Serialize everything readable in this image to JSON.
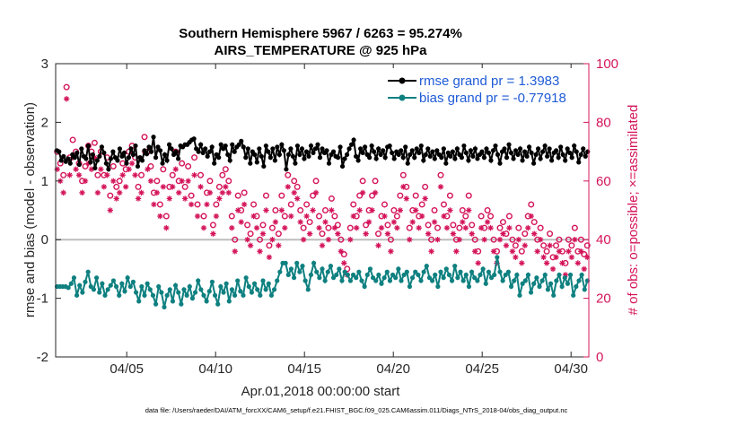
{
  "chart_data": {
    "type": "line",
    "title": "Southern Hemisphere 5967 / 6263 = 95.274%",
    "subtitle": "AIRS_TEMPERATURE @ 925 hPa",
    "xlabel": "Apr.01,2018 00:00:00 start",
    "ylabel_left": "rmse and bias (model - observation)",
    "ylabel_right": "# of obs: o=possible; ×=assimilated",
    "xlim": [
      1,
      31
    ],
    "ylim_left": [
      -2,
      3
    ],
    "ylim_right": [
      0,
      100
    ],
    "x_ticks": [
      5,
      10,
      15,
      20,
      25,
      30
    ],
    "x_tick_labels": [
      "04/05",
      "04/10",
      "04/15",
      "04/20",
      "04/25",
      "04/30"
    ],
    "y_ticks_left": [
      -2,
      -1,
      0,
      1,
      2,
      3
    ],
    "y_ticks_right": [
      0,
      20,
      40,
      60,
      80,
      100
    ],
    "legend_position": "top-right",
    "footer": "data file: /Users/raeder/DAI/ATM_forcXX/CAM6_setup/f.e21.FHIST_BGC.f09_025.CAM6assim.011/Diags_NTrS_2018-04/obs_diag_output.nc",
    "colors": {
      "rmse": "#000000",
      "bias": "#0f8080",
      "obs": "#d4145a",
      "zero": "#bdbdbd"
    },
    "series": [
      {
        "name": "rmse grand pr = 1.3983",
        "axis": "left",
        "values": [
          1.52,
          1.5,
          1.35,
          1.42,
          1.33,
          1.38,
          1.3,
          1.45,
          1.4,
          1.48,
          1.28,
          1.55,
          1.42,
          1.38,
          1.6,
          1.32,
          1.45,
          1.22,
          1.35,
          1.42,
          1.58,
          1.48,
          1.3,
          1.2,
          1.38,
          1.5,
          1.4,
          1.35,
          1.55,
          1.42,
          1.48,
          1.3,
          1.4,
          1.55,
          1.45,
          1.6,
          1.25,
          1.4,
          1.35,
          1.52,
          1.46,
          1.58,
          1.5,
          1.75,
          1.4,
          1.58,
          1.52,
          1.3,
          1.45,
          1.35,
          1.62,
          1.55,
          1.45,
          1.5,
          1.38,
          1.6,
          1.58,
          1.62,
          1.62,
          1.66,
          1.7,
          1.72,
          1.55,
          1.5,
          1.62,
          1.48,
          1.55,
          1.42,
          1.5,
          1.58,
          1.3,
          1.45,
          1.4,
          1.62,
          1.55,
          1.6,
          1.45,
          1.35,
          1.62,
          1.5,
          1.58,
          1.62,
          1.68,
          1.58,
          1.4,
          1.55,
          1.3,
          1.5,
          1.45,
          1.32,
          1.55,
          1.42,
          1.25,
          1.6,
          1.5,
          1.4,
          1.55,
          1.35,
          1.58,
          1.45,
          1.62,
          1.52,
          1.2,
          1.45,
          1.55,
          1.42,
          1.3,
          1.6,
          1.45,
          1.55,
          1.38,
          1.5,
          1.42,
          1.6,
          1.48,
          1.55,
          1.62,
          1.4,
          1.55,
          1.48,
          1.52,
          1.3,
          1.45,
          1.5,
          1.42,
          1.4,
          1.58,
          1.25,
          1.38,
          1.45,
          1.55,
          1.62,
          1.7,
          1.42,
          1.35,
          1.55,
          1.48,
          1.58,
          1.45,
          1.4,
          1.6,
          1.5,
          1.38,
          1.55,
          1.45,
          1.52,
          1.4,
          1.58,
          1.6,
          1.48,
          1.38,
          1.5,
          1.45,
          1.52,
          1.4,
          1.58,
          1.3,
          1.45,
          1.52,
          1.4,
          1.55,
          1.48,
          1.6,
          1.35,
          1.45,
          1.55,
          1.42,
          1.5,
          1.38,
          1.52,
          1.45,
          1.4,
          1.55,
          1.3,
          1.48,
          1.42,
          1.5,
          1.38,
          1.55,
          1.45,
          1.4,
          1.6,
          1.48,
          1.35,
          1.52,
          1.42,
          1.55,
          1.38,
          1.45,
          1.5,
          1.4,
          1.55,
          1.48,
          1.35,
          1.52,
          1.6,
          1.45,
          1.3,
          1.5,
          1.55,
          1.4,
          1.62,
          1.48,
          1.38,
          1.52,
          1.45,
          1.55,
          1.35,
          1.5,
          1.42,
          1.58,
          1.48,
          1.3,
          1.45,
          1.55,
          1.38,
          1.5,
          1.6,
          1.42,
          1.55,
          1.35,
          1.48,
          1.52,
          1.4,
          1.58,
          1.45,
          1.35,
          1.55,
          1.48,
          1.4,
          1.6,
          1.5,
          1.32,
          1.45,
          1.55,
          1.42,
          1.5
        ]
      },
      {
        "name": "bias grand pr = -0.77918",
        "axis": "left",
        "values": [
          -0.8,
          -0.8,
          -0.8,
          -0.8,
          -0.82,
          -0.75,
          -0.65,
          -0.95,
          -0.78,
          -0.9,
          -0.72,
          -0.55,
          -0.8,
          -0.85,
          -0.65,
          -0.9,
          -0.75,
          -0.95,
          -0.85,
          -0.78,
          -0.7,
          -0.8,
          -0.95,
          -0.75,
          -0.88,
          -0.65,
          -0.8,
          -0.72,
          -0.9,
          -1.05,
          -0.8,
          -0.95,
          -0.75,
          -0.85,
          -0.95,
          -1.1,
          -0.8,
          -0.9,
          -1.15,
          -0.95,
          -0.85,
          -1.05,
          -0.78,
          -0.9,
          -1.1,
          -0.85,
          -0.95,
          -0.8,
          -1.0,
          -0.9,
          -0.7,
          -0.85,
          -0.95,
          -1.05,
          -0.88,
          -0.72,
          -0.95,
          -1.1,
          -0.8,
          -0.9,
          -0.75,
          -1.05,
          -0.85,
          -0.95,
          -0.7,
          -0.88,
          -0.95,
          -0.65,
          -0.8,
          -0.9,
          -0.75,
          -0.85,
          -0.95,
          -0.7,
          -0.85,
          -0.75,
          -0.95,
          -0.85,
          -0.7,
          -0.55,
          -0.4,
          -0.4,
          -0.6,
          -0.5,
          -0.65,
          -0.4,
          -0.55,
          -0.45,
          -0.7,
          -0.85,
          -0.6,
          -0.4,
          -0.55,
          -0.65,
          -0.5,
          -0.7,
          -0.55,
          -0.45,
          -0.65,
          -0.6,
          -0.5,
          -0.7,
          -0.55,
          -0.6,
          -0.7,
          -0.6,
          -0.65,
          -0.55,
          -0.7,
          -0.8,
          -0.6,
          -0.5,
          -0.65,
          -0.7,
          -0.6,
          -0.75,
          -0.65,
          -0.55,
          -0.7,
          -0.6,
          -0.65,
          -0.5,
          -0.7,
          -0.6,
          -0.55,
          -0.8,
          -0.65,
          -0.55,
          -0.6,
          -0.7,
          -0.55,
          -0.45,
          -0.65,
          -0.7,
          -0.6,
          -0.8,
          -0.55,
          -0.65,
          -0.5,
          -0.6,
          -0.7,
          -0.45,
          -0.65,
          -0.55,
          -0.7,
          -0.6,
          -0.8,
          -0.55,
          -0.65,
          -0.7,
          -0.6,
          -0.5,
          -0.75,
          -0.55,
          -0.65,
          -0.6,
          -0.3,
          -0.55,
          -0.7,
          -0.6,
          -0.55,
          -0.8,
          -0.7,
          -0.6,
          -0.95,
          -0.75,
          -0.7,
          -0.6,
          -0.9,
          -0.75,
          -0.65,
          -0.8,
          -0.7,
          -0.6,
          -0.85,
          -0.75,
          -0.95,
          -0.7,
          -0.6,
          -0.8,
          -0.65,
          -0.75,
          -0.6,
          -0.95,
          -0.8,
          -0.7,
          -0.6,
          -0.85,
          -0.7
        ]
      },
      {
        "name": "possible",
        "axis": "right",
        "marker": "o",
        "values": [
          70,
          66,
          62,
          92,
          68,
          74,
          70,
          66,
          60,
          65,
          72,
          70,
          73,
          62,
          70,
          62,
          68,
          55,
          65,
          58,
          60,
          66,
          64,
          70,
          72,
          68,
          58,
          62,
          75,
          70,
          65,
          56,
          60,
          52,
          64,
          48,
          58,
          62,
          70,
          60,
          66,
          58,
          65,
          55,
          68,
          52,
          62,
          48,
          56,
          60,
          45,
          52,
          58,
          62,
          64,
          60,
          48,
          40,
          55,
          50,
          56,
          45,
          42,
          52,
          48,
          40,
          45,
          55,
          38,
          44,
          50,
          42,
          55,
          48,
          62,
          52,
          60,
          58,
          50,
          44,
          52,
          46,
          55,
          60,
          48,
          42,
          50,
          44,
          54,
          48,
          45,
          40,
          35,
          30,
          44,
          52,
          48,
          55,
          60,
          45,
          50,
          55,
          60,
          42,
          48,
          52,
          45,
          40,
          50,
          48,
          55,
          62,
          58,
          44,
          50,
          55,
          48,
          52,
          58,
          45,
          40,
          50,
          44,
          62,
          52,
          48,
          55,
          45,
          40,
          44,
          50,
          48,
          55,
          45,
          40,
          36,
          48,
          44,
          50,
          48,
          40,
          36,
          44,
          46,
          42,
          48,
          40,
          38,
          44,
          36,
          42,
          48,
          52,
          46,
          40,
          44,
          38,
          36,
          42,
          34,
          38,
          40,
          36,
          32,
          40,
          38,
          44,
          36,
          40,
          35,
          38
        ]
      },
      {
        "name": "assimilated",
        "axis": "right",
        "marker": "x",
        "values": [
          64,
          60,
          56,
          88,
          62,
          68,
          64,
          62,
          56,
          60,
          66,
          64,
          68,
          56,
          64,
          58,
          62,
          50,
          60,
          54,
          56,
          62,
          58,
          64,
          66,
          62,
          54,
          56,
          70,
          64,
          60,
          52,
          56,
          48,
          58,
          44,
          54,
          58,
          64,
          56,
          60,
          54,
          60,
          52,
          62,
          48,
          58,
          44,
          52,
          56,
          42,
          48,
          54,
          56,
          58,
          56,
          44,
          36,
          50,
          46,
          52,
          40,
          38,
          48,
          44,
          36,
          42,
          50,
          34,
          40,
          46,
          38,
          50,
          44,
          58,
          48,
          56,
          54,
          46,
          40,
          48,
          42,
          50,
          56,
          44,
          38,
          46,
          40,
          50,
          44,
          42,
          36,
          32,
          28,
          40,
          48,
          44,
          50,
          56,
          42,
          46,
          50,
          56,
          38,
          44,
          48,
          42,
          36,
          46,
          44,
          50,
          58,
          54,
          40,
          46,
          50,
          44,
          48,
          54,
          42,
          36,
          46,
          40,
          58,
          48,
          44,
          50,
          42,
          36,
          40,
          46,
          44,
          50,
          42,
          36,
          32,
          44,
          40,
          46,
          44,
          36,
          32,
          40,
          42,
          38,
          44,
          36,
          34,
          40,
          32,
          38,
          44,
          48,
          42,
          36,
          40,
          34,
          32,
          38,
          30,
          34,
          36,
          32,
          28,
          36,
          34,
          40,
          32,
          36,
          30,
          34
        ]
      }
    ]
  }
}
